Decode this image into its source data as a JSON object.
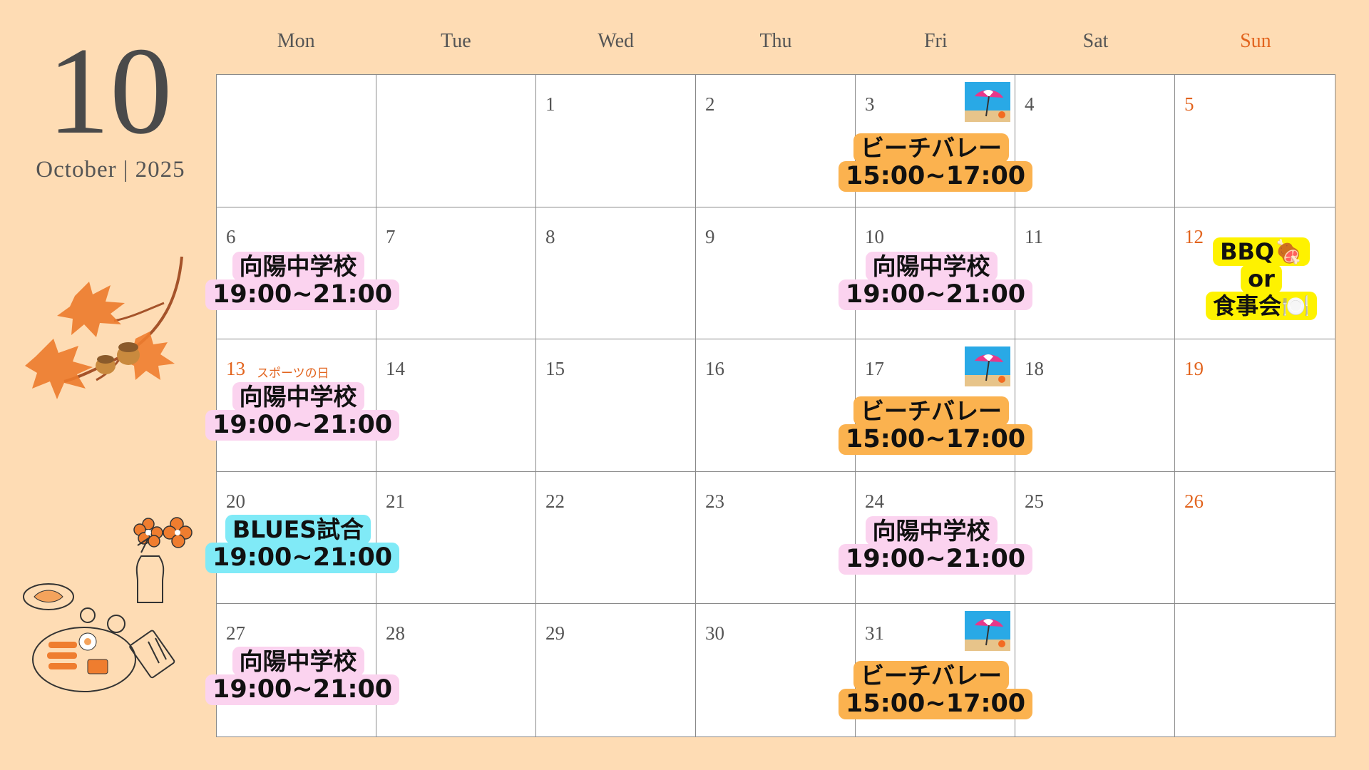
{
  "header": {
    "month_number": "10",
    "month_label": "October | 2025"
  },
  "weekdays": [
    "Mon",
    "Tue",
    "Wed",
    "Thu",
    "Fri",
    "Sat",
    "Sun"
  ],
  "days": {
    "d1": "1",
    "d2": "2",
    "d3": "3",
    "d4": "4",
    "d5": "5",
    "d6": "6",
    "d7": "7",
    "d8": "8",
    "d9": "9",
    "d10": "10",
    "d11": "11",
    "d12": "12",
    "d13": "13",
    "d14": "14",
    "d15": "15",
    "d16": "16",
    "d17": "17",
    "d18": "18",
    "d19": "19",
    "d20": "20",
    "d21": "21",
    "d22": "22",
    "d23": "23",
    "d24": "24",
    "d25": "25",
    "d26": "26",
    "d27": "27",
    "d28": "28",
    "d29": "29",
    "d30": "30",
    "d31": "31"
  },
  "holiday": {
    "name": "スポーツの日"
  },
  "events": {
    "beach": {
      "title": "ビーチバレー",
      "time": "15:00~17:00",
      "icon": "beach-umbrella-icon"
    },
    "school": {
      "title": "向陽中学校",
      "time": "19:00~21:00"
    },
    "blues": {
      "title": "BLUES試合",
      "time": "19:00~21:00"
    },
    "bbq": {
      "line1": "BBQ🍖",
      "line2": "or",
      "line3": "食事会🍽️"
    }
  },
  "colors": {
    "background": "#fedcb4",
    "sunday": "#e2641e",
    "pink_tag": "#fbd3ef",
    "orange_tag": "#fbb24f",
    "cyan_tag": "#80eaf7",
    "yellow_tag": "#fef200"
  }
}
